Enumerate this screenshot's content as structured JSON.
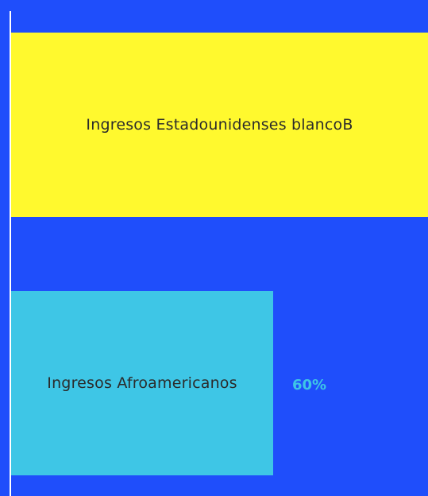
{
  "colors": {
    "background": "#1f4efb",
    "axis": "#ffffff",
    "bar_white": "#fff92e",
    "bar_black": "#3ec6e6",
    "label_text": "#2b2b2b",
    "value_text": "#3ec6e6"
  },
  "chart_data": {
    "type": "bar",
    "orientation": "horizontal",
    "title": "",
    "xlabel": "",
    "ylabel": "",
    "xlim": [
      0,
      100
    ],
    "categories": [
      "Ingresos Estadounidenses blancoB",
      "Ingresos Afroamericanos"
    ],
    "values": [
      100,
      60
    ],
    "value_labels": [
      "",
      "60%"
    ]
  }
}
